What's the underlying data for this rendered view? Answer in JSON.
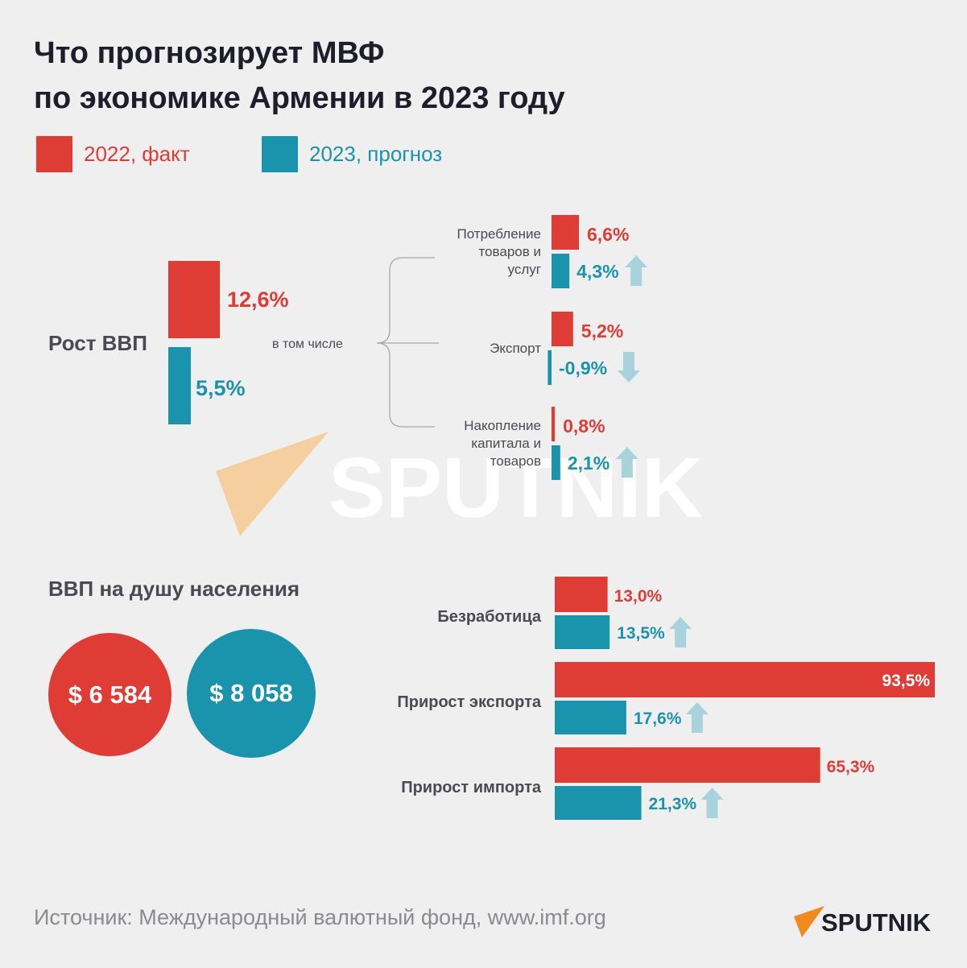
{
  "title_line1": "Что прогнозирует МВФ",
  "title_line2": "по экономике Армении в 2023 году",
  "legend": [
    {
      "label": "2022, факт",
      "color": "#e03c36"
    },
    {
      "label": "2023, прогноз",
      "color": "#1a93ad"
    }
  ],
  "colors": {
    "red": "#e03c36",
    "teal": "#1a93ad",
    "arrow": "#a9d3dc"
  },
  "chart_data": [
    {
      "type": "bar",
      "title": "Рост ВВП",
      "series": [
        {
          "name": "2022, факт",
          "values": [
            12.6
          ],
          "labels": [
            "12,6%"
          ]
        },
        {
          "name": "2023, прогноз",
          "values": [
            5.5
          ],
          "labels": [
            "5,5%"
          ]
        }
      ]
    },
    {
      "type": "bar",
      "note": "в том числе",
      "categories": [
        "Потребление товаров и услуг",
        "Экспорт",
        "Накопление капитала и товаров"
      ],
      "category_lines": [
        [
          "Потребление",
          "товаров и",
          "услуг"
        ],
        [
          "Экспорт"
        ],
        [
          "Накопление",
          "капитала и",
          "товаров"
        ]
      ],
      "series": [
        {
          "name": "2022, факт",
          "values": [
            6.6,
            5.2,
            0.8
          ],
          "labels": [
            "6,6%",
            "5,2%",
            "0,8%"
          ]
        },
        {
          "name": "2023, прогноз",
          "values": [
            4.3,
            -0.9,
            2.1
          ],
          "labels": [
            "4,3%",
            "-0,9%",
            "2,1%"
          ],
          "trend": [
            "up",
            "down",
            "up"
          ]
        }
      ]
    },
    {
      "type": "bar",
      "orientation": "horizontal",
      "categories": [
        "Безработица",
        "Прирост экспорта",
        "Прирост импорта"
      ],
      "series": [
        {
          "name": "2022, факт",
          "values": [
            13.0,
            93.5,
            65.3
          ],
          "labels": [
            "13,0%",
            "93,5%",
            "65,3%"
          ]
        },
        {
          "name": "2023, прогноз",
          "values": [
            13.5,
            17.6,
            21.3
          ],
          "labels": [
            "13,5%",
            "17,6%",
            "21,3%"
          ],
          "trend": [
            "up",
            "up",
            "up"
          ]
        }
      ]
    }
  ],
  "gdp_per_capita": {
    "title": "ВВП на душу населения",
    "value_2022": "$ 6 584",
    "value_2023": "$ 8 058"
  },
  "watermark": "SPUTNIK",
  "source": "Источник: Международный валютный фонд, www.imf.org",
  "logo": "SPUTNIK"
}
